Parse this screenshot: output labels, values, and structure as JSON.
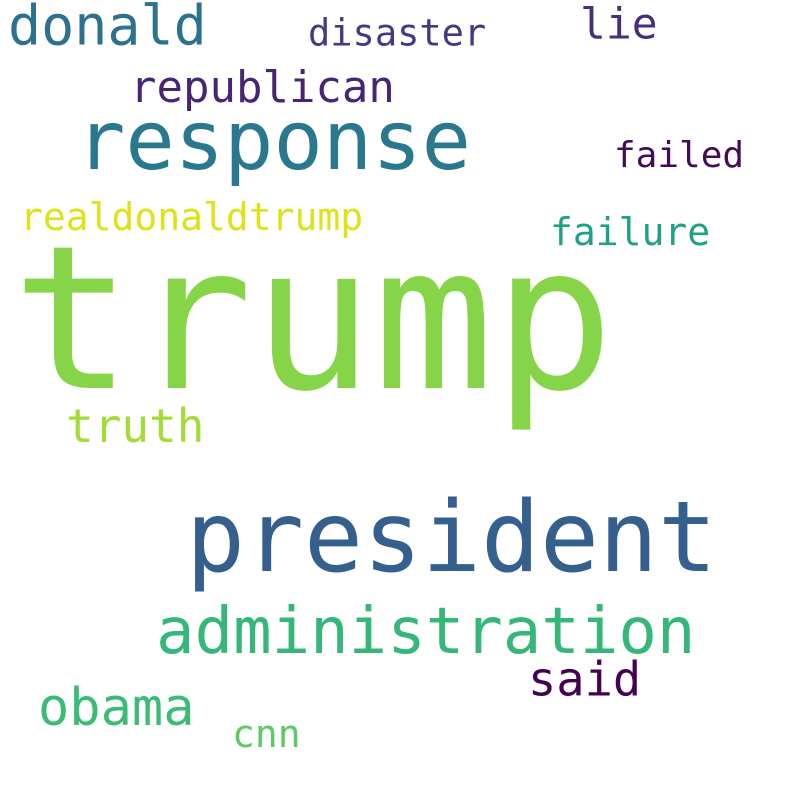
{
  "words": [
    {
      "text": "trump",
      "color": "#86d549"
    },
    {
      "text": "president",
      "color": "#355f8d"
    },
    {
      "text": "response",
      "color": "#2a788e"
    },
    {
      "text": "administration",
      "color": "#35b779"
    },
    {
      "text": "donald",
      "color": "#2c728e"
    },
    {
      "text": "republican",
      "color": "#482475"
    },
    {
      "text": "obama",
      "color": "#3bbb75"
    },
    {
      "text": "truth",
      "color": "#a5db36"
    },
    {
      "text": "said",
      "color": "#440154"
    },
    {
      "text": "realdonaldtrump",
      "color": "#dde318"
    },
    {
      "text": "failure",
      "color": "#1fa088"
    },
    {
      "text": "disaster",
      "color": "#443a83"
    },
    {
      "text": "lie",
      "color": "#472d7b"
    },
    {
      "text": "failed",
      "color": "#450b57"
    },
    {
      "text": "cnn",
      "color": "#5ec962"
    }
  ]
}
